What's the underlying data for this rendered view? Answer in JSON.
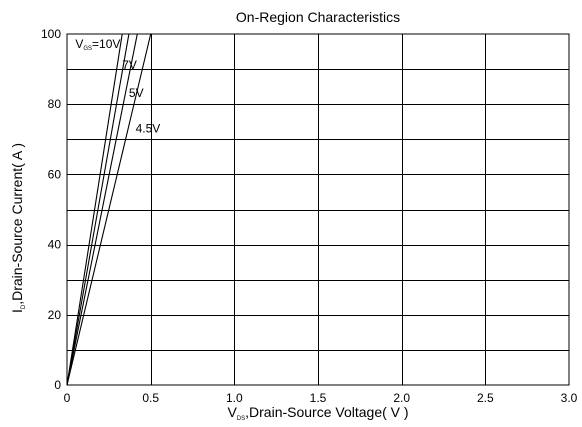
{
  "chart_data": {
    "type": "line",
    "title": "On-Region Characteristics",
    "xlabel": {
      "main": "V",
      "sub": "DS",
      "rest": ",Drain-Source Voltage( V )"
    },
    "ylabel": {
      "main": "I",
      "sub": "D",
      "rest": ",Drain-Source Current( A )"
    },
    "xlim": [
      0,
      3.0
    ],
    "ylim": [
      0,
      100
    ],
    "x_ticks": [
      0,
      0.5,
      1.0,
      1.5,
      2.0,
      2.5,
      3.0
    ],
    "x_tick_labels": [
      "0",
      "0.5",
      "1.0",
      "1.5",
      "2.0",
      "2.5",
      "3.0"
    ],
    "y_ticks": [
      0,
      20,
      40,
      60,
      80,
      100
    ],
    "y_tick_labels": [
      "0",
      "20",
      "40",
      "60",
      "80",
      "100"
    ],
    "grid": {
      "x_step": 0.5,
      "y_step": 10
    },
    "series": [
      {
        "label_main": "V",
        "label_sub": "GS",
        "label_rest": "=10V",
        "x": [
          0,
          0.33
        ],
        "y": [
          0,
          100
        ],
        "label_at": [
          0.05,
          96
        ]
      },
      {
        "label_main": "",
        "label_sub": "",
        "label_rest": "7V",
        "x": [
          0,
          0.37
        ],
        "y": [
          0,
          100
        ],
        "label_at": [
          0.33,
          90
        ]
      },
      {
        "label_main": "",
        "label_sub": "",
        "label_rest": "5V",
        "x": [
          0,
          0.42
        ],
        "y": [
          0,
          100
        ],
        "label_at": [
          0.37,
          82
        ]
      },
      {
        "label_main": "",
        "label_sub": "",
        "label_rest": "4.5V",
        "x": [
          0,
          0.5
        ],
        "y": [
          0,
          100
        ],
        "label_at": [
          0.41,
          72
        ]
      }
    ]
  }
}
